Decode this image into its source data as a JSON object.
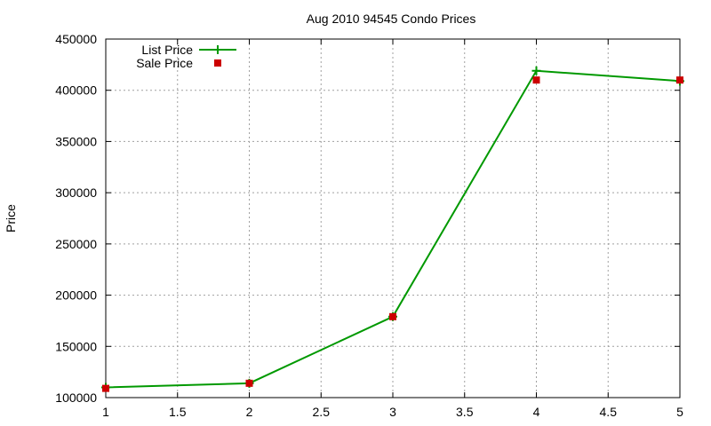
{
  "chart_data": {
    "type": "line",
    "title": "Aug 2010 94545 Condo Prices",
    "xlabel": "",
    "ylabel": "Price",
    "xlim": [
      1,
      5
    ],
    "ylim": [
      100000,
      450000
    ],
    "x_ticks": [
      "1",
      "1.5",
      "2",
      "2.5",
      "3",
      "3.5",
      "4",
      "4.5",
      "5"
    ],
    "y_ticks": [
      "100000",
      "150000",
      "200000",
      "250000",
      "300000",
      "350000",
      "400000",
      "450000"
    ],
    "grid": true,
    "legend_position": "top-left",
    "series": [
      {
        "name": "List Price",
        "style": "line+cross",
        "color": "#009900",
        "x": [
          1,
          2,
          3,
          4,
          5
        ],
        "y": [
          110000,
          114000,
          179000,
          419000,
          409000
        ]
      },
      {
        "name": "Sale Price",
        "style": "square-points",
        "color": "#cc0000",
        "x": [
          1,
          2,
          3,
          4,
          5
        ],
        "y": [
          109000,
          114000,
          179000,
          410000,
          410000
        ]
      }
    ]
  }
}
